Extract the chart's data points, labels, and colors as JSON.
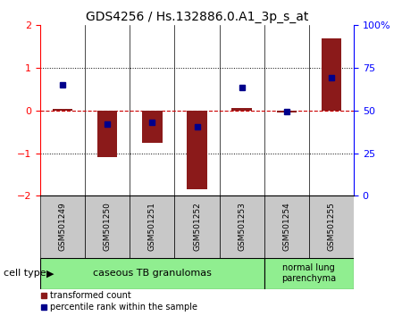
{
  "title": "GDS4256 / Hs.132886.0.A1_3p_s_at",
  "samples": [
    "GSM501249",
    "GSM501250",
    "GSM501251",
    "GSM501252",
    "GSM501253",
    "GSM501254",
    "GSM501255"
  ],
  "transformed_count": [
    0.05,
    -1.1,
    -0.75,
    -1.85,
    0.07,
    -0.05,
    1.7
  ],
  "percentile_rank": [
    0.6,
    -0.32,
    -0.28,
    -0.38,
    0.55,
    -0.02,
    0.78
  ],
  "red_color": "#8B1A1A",
  "blue_color": "#00008B",
  "dashed_red_color": "#CC0000",
  "ylim_left": [
    -2,
    2
  ],
  "yticks_left": [
    -2,
    -1,
    0,
    1,
    2
  ],
  "yticks_right": [
    0,
    25,
    50,
    75,
    100
  ],
  "yticklabels_right": [
    "0",
    "25",
    "50",
    "75",
    "100%"
  ],
  "group1_label": "caseous TB granulomas",
  "group2_label": "normal lung\nparenchyma",
  "cell_type_label": "cell type",
  "legend_red_label": "transformed count",
  "legend_blue_label": "percentile rank within the sample",
  "bar_width": 0.45,
  "marker_size": 5,
  "bg_color": "#FFFFFF",
  "plot_bg": "#FFFFFF",
  "group_bg": "#90EE90",
  "sample_bg": "#C8C8C8",
  "title_fontsize": 10,
  "tick_fontsize": 8,
  "label_fontsize": 7
}
